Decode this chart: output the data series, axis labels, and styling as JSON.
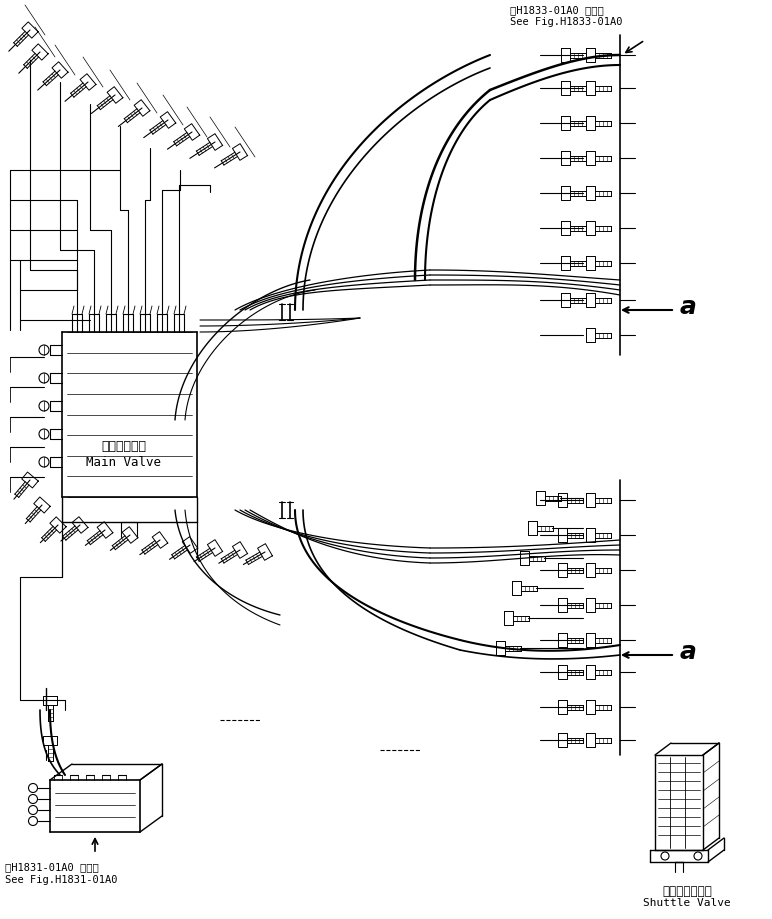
{
  "bg_color": "#ffffff",
  "line_color": "#000000",
  "title_top_right_line1": "第H1833-01A0 図参照",
  "title_top_right_line2": "See Fig.H1833-01A0",
  "title_bottom_left_line1": "第H1831-01A0 図参照",
  "title_bottom_left_line2": "See Fig.H1831-01A0",
  "label_main_valve_jp": "メインバルブ",
  "label_main_valve_en": "Main Valve",
  "label_shuttle_valve_jp": "シャトルバルブ",
  "label_shuttle_valve_en": "Shuttle Valve",
  "label_a": "a",
  "figsize": [
    7.72,
    9.19
  ],
  "dpi": 100
}
